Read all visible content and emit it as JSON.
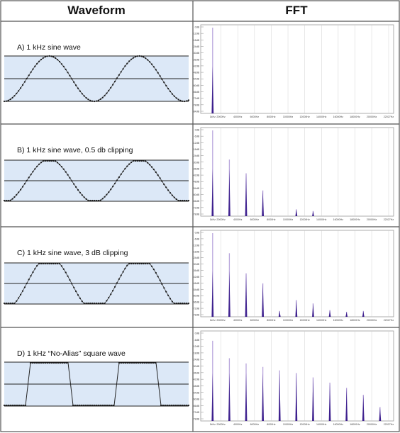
{
  "headers": {
    "waveform": "Waveform",
    "fft": "FFT"
  },
  "colors": {
    "band": "#dce8f7",
    "wave_dots": "#1a1a1a",
    "fft_bar": "#3d1f8e",
    "fft_bar_light": "#b9a6dc",
    "fft_grid": "#c7c7c7",
    "border": "#555555"
  },
  "rows": [
    {
      "label": "A)   1 kHz sine wave",
      "waveform": {
        "shape": "sine",
        "clip_db": 0
      },
      "fft": {
        "x_ticks": [
          "1kHz",
          "2000Hz",
          "4000Hz",
          "6000Hz",
          "8000Hz",
          "10000Hz",
          "12000Hz",
          "14000Hz",
          "16000Hz",
          "18000Hz",
          "20000Hz",
          "22027Hz"
        ],
        "y_ticks": [
          "0dB",
          "-12dB",
          "-18dB",
          "-24dB",
          "-30dB",
          "-36dB",
          "-42dB",
          "-48dB",
          "-54dB",
          "-60dB",
          "-66dB",
          "-72dB",
          "-78dB",
          "-84dB"
        ],
        "harmonics": [
          {
            "freq_khz": 1,
            "level": 1.0
          }
        ]
      }
    },
    {
      "label": "B)   1 kHz sine wave, 0.5 db clipping",
      "waveform": {
        "shape": "sine",
        "clip_db": 0.5
      },
      "fft": {
        "x_ticks": [
          "1kHz",
          "2000Hz",
          "4000Hz",
          "6000Hz",
          "8000Hz",
          "10000Hz",
          "12000Hz",
          "14000Hz",
          "16000Hz",
          "18000Hz",
          "20000Hz",
          "22027Hz"
        ],
        "y_ticks": [
          "0dB",
          "-6dB",
          "-12dB",
          "-18dB",
          "-24dB",
          "-30dB",
          "-36dB",
          "-42dB",
          "-48dB",
          "-54dB",
          "-60dB",
          "-66dB",
          "-72dB",
          "-78dB"
        ],
        "harmonics": [
          {
            "freq_khz": 1,
            "level": 1.0
          },
          {
            "freq_khz": 3,
            "level": 0.66
          },
          {
            "freq_khz": 5,
            "level": 0.5
          },
          {
            "freq_khz": 7,
            "level": 0.3
          },
          {
            "freq_khz": 11,
            "level": 0.08
          },
          {
            "freq_khz": 13,
            "level": 0.06
          }
        ]
      }
    },
    {
      "label": "C)   1 kHz sine wave, 3 dB clipping",
      "waveform": {
        "shape": "sine",
        "clip_db": 3
      },
      "fft": {
        "x_ticks": [
          "1kHz",
          "2000Hz",
          "4000Hz",
          "6000Hz",
          "8000Hz",
          "10000Hz",
          "12000Hz",
          "14000Hz",
          "16000Hz",
          "18000Hz",
          "20000Hz",
          "22027Hz"
        ],
        "y_ticks": [
          "0dB",
          "-6dB",
          "-12dB",
          "-18dB",
          "-24dB",
          "-30dB",
          "-36dB",
          "-42dB",
          "-48dB",
          "-54dB",
          "-60dB",
          "-66dB",
          "-72dB",
          "-78dB"
        ],
        "harmonics": [
          {
            "freq_khz": 1,
            "level": 1.0
          },
          {
            "freq_khz": 3,
            "level": 0.76
          },
          {
            "freq_khz": 5,
            "level": 0.52
          },
          {
            "freq_khz": 7,
            "level": 0.4
          },
          {
            "freq_khz": 9,
            "level": 0.07
          },
          {
            "freq_khz": 11,
            "level": 0.2
          },
          {
            "freq_khz": 13,
            "level": 0.16
          },
          {
            "freq_khz": 15,
            "level": 0.08
          },
          {
            "freq_khz": 17,
            "level": 0.06
          },
          {
            "freq_khz": 19,
            "level": 0.07
          }
        ]
      }
    },
    {
      "label": "D)   1 kHz “No-Alias” square wave",
      "waveform": {
        "shape": "square",
        "clip_db": 0
      },
      "fft": {
        "x_ticks": [
          "1kHz",
          "2000Hz",
          "4000Hz",
          "6000Hz",
          "8000Hz",
          "10000Hz",
          "12000Hz",
          "14000Hz",
          "16000Hz",
          "18000Hz",
          "20000Hz",
          "22027Hz"
        ],
        "y_ticks": [
          "0dB",
          "-6dB",
          "-12dB",
          "-18dB",
          "-24dB",
          "-30dB",
          "-36dB",
          "-42dB",
          "-48dB",
          "-54dB",
          "-60dB",
          "-66dB",
          "-72dB",
          "-78dB"
        ],
        "harmonics": [
          {
            "freq_khz": 1,
            "level": 0.92
          },
          {
            "freq_khz": 3,
            "level": 0.72
          },
          {
            "freq_khz": 5,
            "level": 0.66
          },
          {
            "freq_khz": 7,
            "level": 0.62
          },
          {
            "freq_khz": 9,
            "level": 0.58
          },
          {
            "freq_khz": 11,
            "level": 0.55
          },
          {
            "freq_khz": 13,
            "level": 0.5
          },
          {
            "freq_khz": 15,
            "level": 0.44
          },
          {
            "freq_khz": 17,
            "level": 0.38
          },
          {
            "freq_khz": 19,
            "level": 0.3
          },
          {
            "freq_khz": 21,
            "level": 0.16
          }
        ]
      }
    }
  ]
}
